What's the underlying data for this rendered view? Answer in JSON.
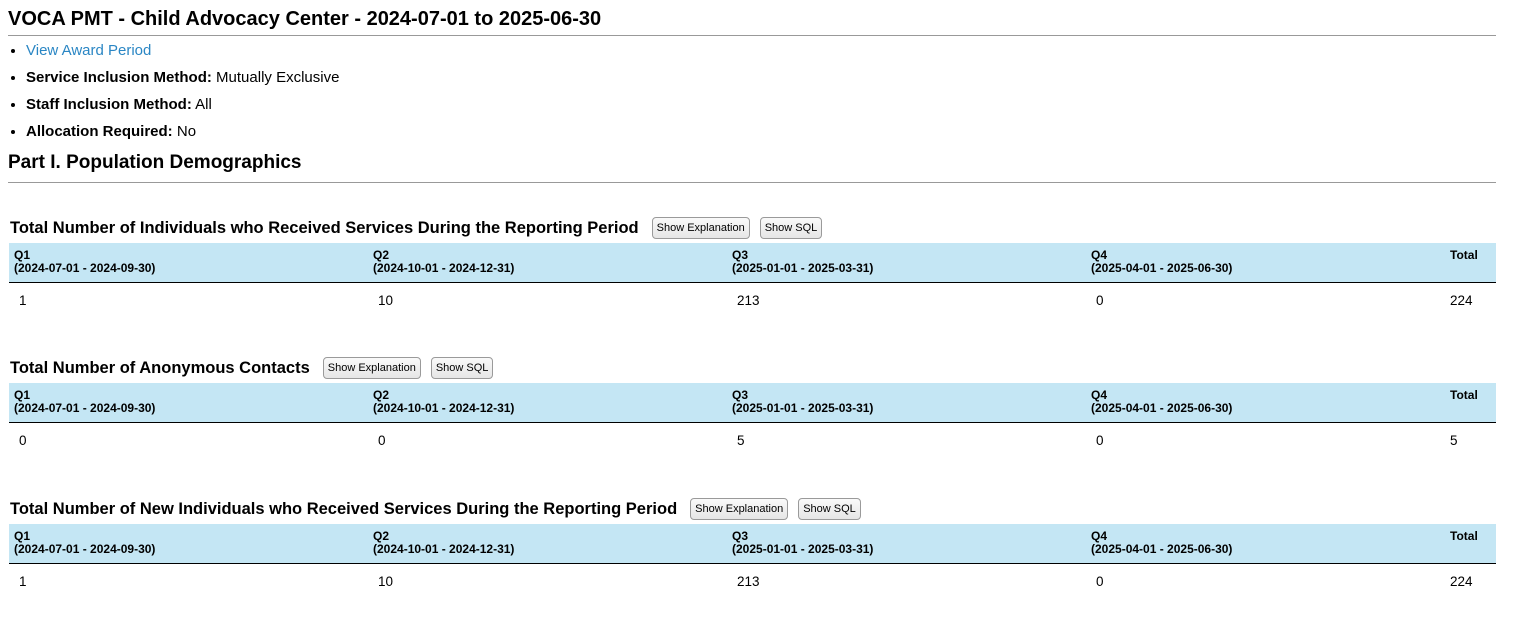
{
  "page": {
    "title": "VOCA PMT - Child Advocacy Center - 2024-07-01 to 2025-06-30"
  },
  "meta": {
    "award_link": "View Award Period",
    "items": [
      {
        "label": "Service Inclusion Method:",
        "value": "Mutually Exclusive"
      },
      {
        "label": "Staff Inclusion Method:",
        "value": "All"
      },
      {
        "label": "Allocation Required:",
        "value": "No"
      }
    ]
  },
  "section": {
    "title": "Part I. Population Demographics"
  },
  "buttons": {
    "explanation": "Show Explanation",
    "sql": "Show SQL"
  },
  "columns": [
    {
      "name": "Q1",
      "range": "(2024-07-01 - 2024-09-30)"
    },
    {
      "name": "Q2",
      "range": "(2024-10-01 - 2024-12-31)"
    },
    {
      "name": "Q3",
      "range": "(2025-01-01 - 2025-03-31)"
    },
    {
      "name": "Q4",
      "range": "(2025-04-01 - 2025-06-30)"
    },
    {
      "name": "Total",
      "range": ""
    }
  ],
  "reports": [
    {
      "title": "Total Number of Individuals who Received Services During the Reporting Period",
      "values": [
        "1",
        "10",
        "213",
        "0",
        "224"
      ]
    },
    {
      "title": "Total Number of Anonymous Contacts",
      "values": [
        "0",
        "0",
        "5",
        "0",
        "5"
      ]
    },
    {
      "title": "Total Number of New Individuals who Received Services During the Reporting Period",
      "values": [
        "1",
        "10",
        "213",
        "0",
        "224"
      ]
    }
  ]
}
